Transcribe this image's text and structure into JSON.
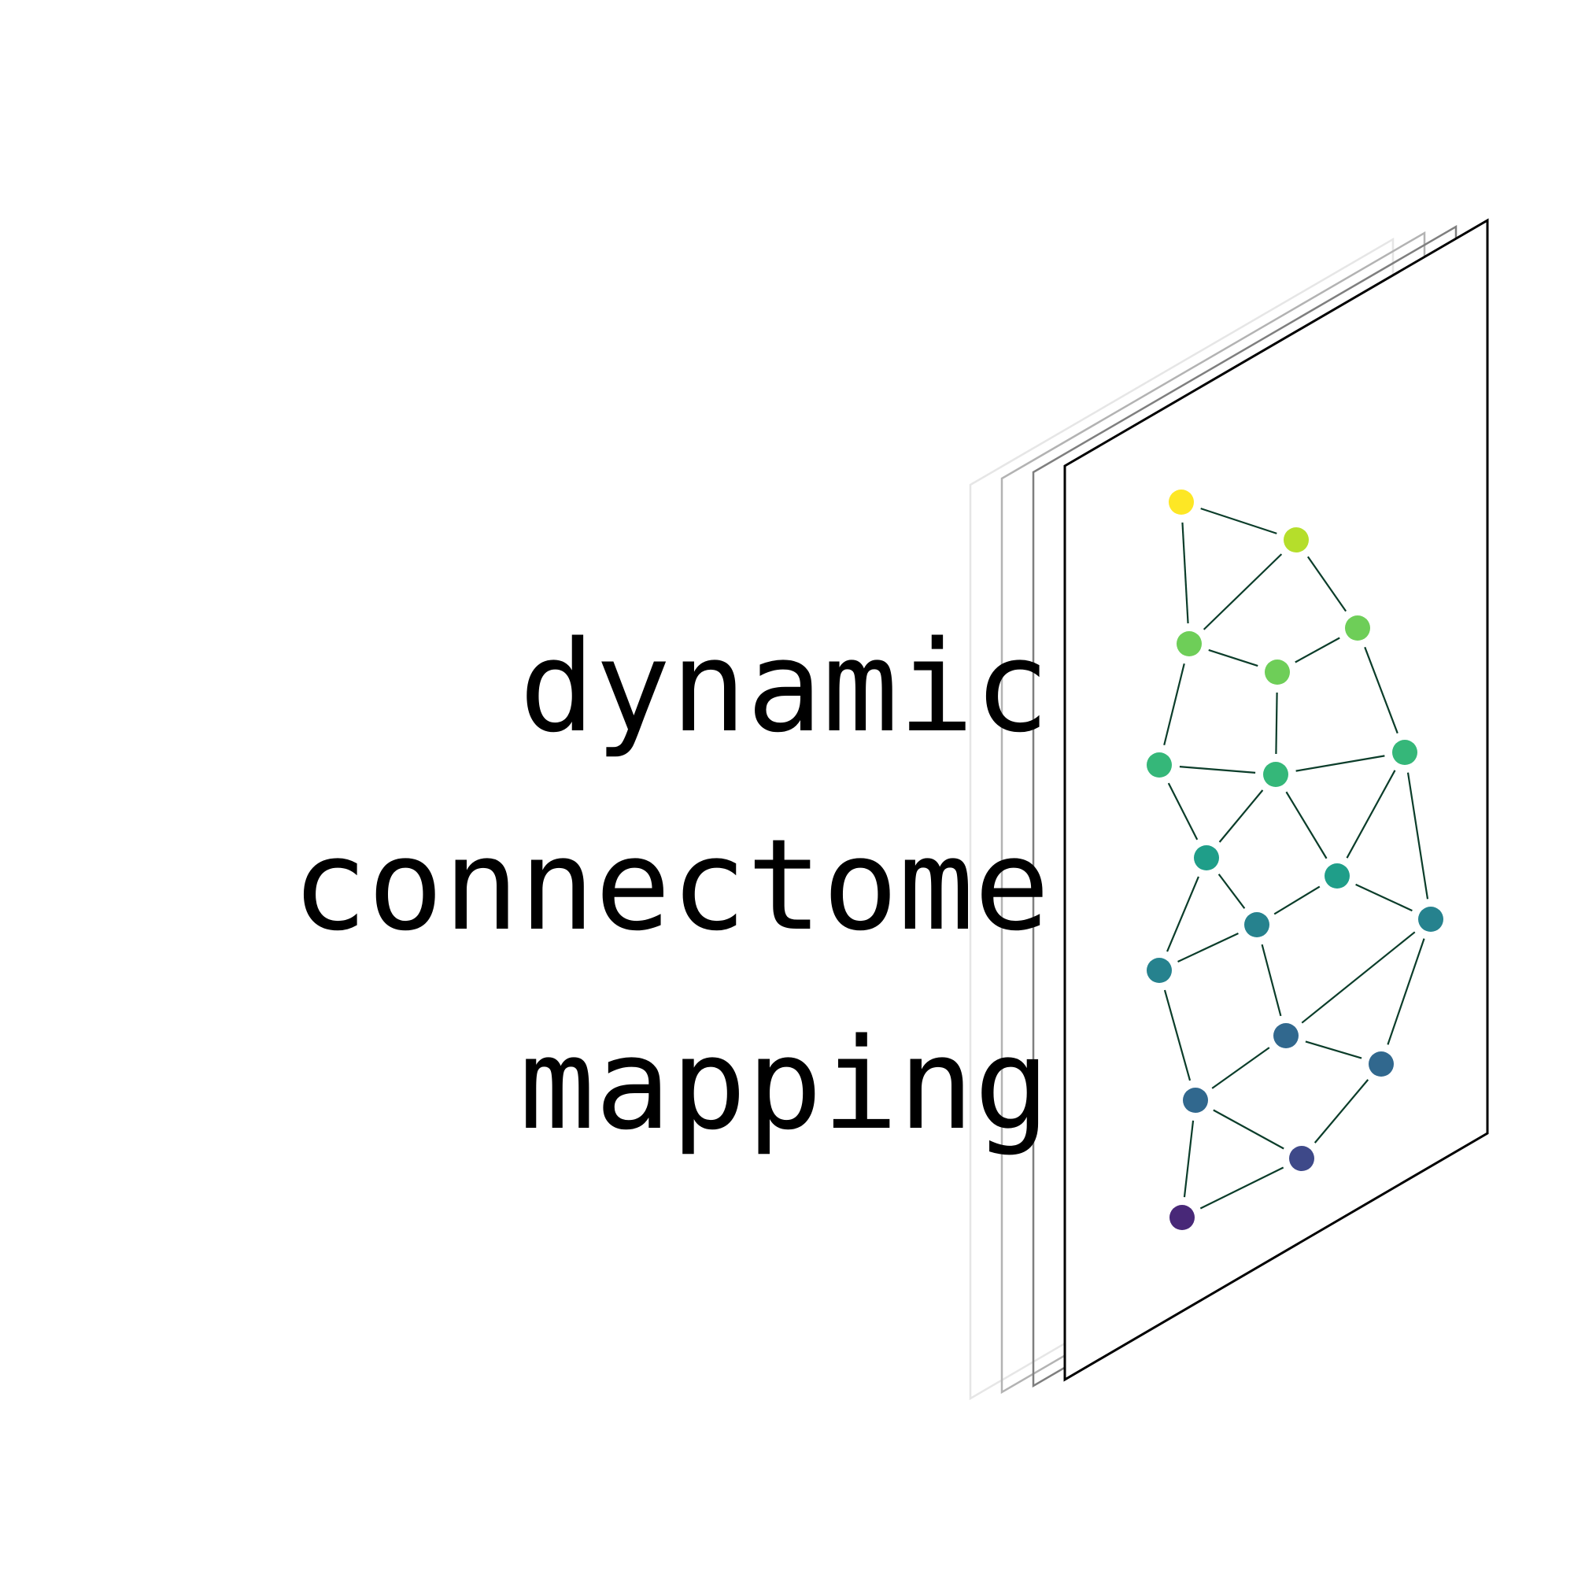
{
  "title_lines": [
    "dynamic",
    "connectome",
    "mapping"
  ],
  "colors": {
    "background": "#ffffff",
    "text": "#000000",
    "edge": "#0b3d2a",
    "frame_front": "#000000",
    "frame_layers": [
      "#e6e6e6",
      "#b3b3b3",
      "#7f7f7f"
    ]
  },
  "graph": {
    "node_colors": [
      "#fde725",
      "#b5de2b",
      "#6ece58",
      "#6ece58",
      "#6ece58",
      "#35b779",
      "#35b779",
      "#35b779",
      "#1f9e89",
      "#1f9e89",
      "#26828e",
      "#26828e",
      "#26828e",
      "#31688e",
      "#31688e",
      "#31688e",
      "#3e4989",
      "#482878"
    ]
  }
}
